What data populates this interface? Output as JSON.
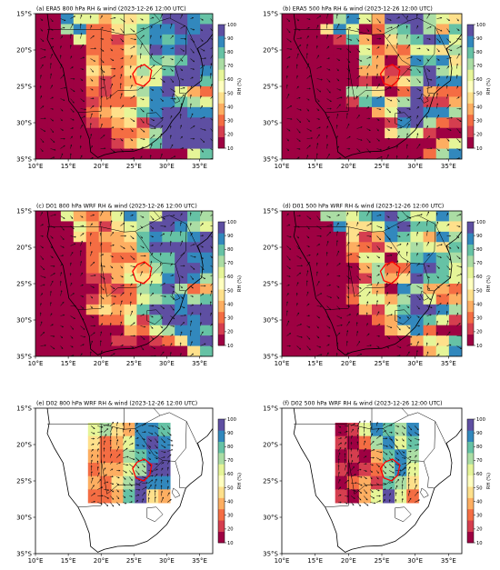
{
  "figure": {
    "colormap": [
      "#9e0142",
      "#d53e4f",
      "#f46d43",
      "#fdae61",
      "#fee08b",
      "#ffffbf",
      "#e6f598",
      "#abdda4",
      "#66c2a5",
      "#3288bd",
      "#5e4fa2"
    ],
    "colorbar_label": "RH (%)",
    "colorbar_ticks": [
      "10",
      "20",
      "30",
      "40",
      "50",
      "60",
      "70",
      "80",
      "90",
      "100"
    ],
    "target_box_color": "#ff0000"
  },
  "chart_data": [
    {
      "type": "heatmap",
      "panel": "a",
      "title": "(a) ERA5 800 hPa RH & wind (2023-12-26 12:00 UTC)",
      "xlabel": "",
      "ylabel": "",
      "xticks": [
        "10°E",
        "15°E",
        "20°E",
        "25°E",
        "30°E",
        "35°E"
      ],
      "yticks": [
        "15°S",
        "20°S",
        "25°S",
        "30°S",
        "35°S"
      ],
      "xlim": [
        10,
        37
      ],
      "ylim": [
        -35,
        -15
      ],
      "colorbar": {
        "label": "RH (%)",
        "range": [
          10,
          100
        ]
      },
      "rh_grid": [
        [
          10,
          10,
          90,
          60,
          60,
          40,
          60,
          50,
          60,
          80,
          100,
          100,
          90,
          80
        ],
        [
          10,
          10,
          70,
          90,
          30,
          30,
          50,
          60,
          80,
          90,
          90,
          100,
          90,
          100
        ],
        [
          10,
          10,
          10,
          60,
          30,
          30,
          20,
          40,
          80,
          90,
          80,
          90,
          100,
          100
        ],
        [
          10,
          10,
          10,
          10,
          30,
          30,
          30,
          50,
          70,
          100,
          90,
          100,
          100,
          100
        ],
        [
          10,
          10,
          10,
          10,
          40,
          30,
          30,
          40,
          60,
          80,
          70,
          80,
          100,
          100
        ],
        [
          10,
          10,
          10,
          10,
          50,
          40,
          30,
          50,
          70,
          60,
          80,
          100,
          100,
          90
        ],
        [
          10,
          10,
          10,
          10,
          40,
          20,
          30,
          40,
          50,
          60,
          100,
          100,
          100,
          80
        ],
        [
          10,
          10,
          10,
          10,
          30,
          20,
          30,
          50,
          70,
          90,
          100,
          60,
          40,
          30
        ],
        [
          10,
          10,
          10,
          10,
          20,
          30,
          30,
          30,
          60,
          90,
          90,
          80,
          70,
          60
        ],
        [
          10,
          10,
          10,
          10,
          30,
          40,
          50,
          60,
          80,
          90,
          100,
          100,
          90,
          90
        ],
        [
          10,
          10,
          10,
          10,
          20,
          30,
          40,
          50,
          20,
          100,
          100,
          100,
          100,
          100
        ],
        [
          10,
          10,
          10,
          10,
          10,
          10,
          30,
          30,
          40,
          70,
          100,
          100,
          100,
          100
        ],
        [
          10,
          10,
          10,
          10,
          10,
          10,
          20,
          40,
          60,
          80,
          100,
          100,
          100,
          100
        ],
        [
          10,
          10,
          10,
          10,
          10,
          10,
          10,
          10,
          10,
          10,
          10,
          10,
          60,
          80
        ]
      ]
    },
    {
      "type": "heatmap",
      "panel": "b",
      "title": "(b) ERA5 500 hPa RH & wind (2023-12-26 12:00 UTC)",
      "xlabel": "",
      "ylabel": "",
      "xticks": [
        "10°E",
        "15°E",
        "20°E",
        "25°E",
        "30°E",
        "35°E"
      ],
      "yticks": [
        "15°S",
        "20°S",
        "25°S",
        "30°S",
        "35°S"
      ],
      "xlim": [
        10,
        37
      ],
      "ylim": [
        -35,
        -15
      ],
      "colorbar": {
        "label": "RH (%)",
        "range": [
          10,
          100
        ]
      },
      "rh_grid": [
        [
          10,
          10,
          10,
          10,
          70,
          90,
          60,
          40,
          100,
          100,
          100,
          70,
          60,
          50
        ],
        [
          10,
          10,
          10,
          50,
          90,
          60,
          10,
          30,
          70,
          80,
          100,
          70,
          40,
          80
        ],
        [
          10,
          10,
          10,
          10,
          20,
          80,
          40,
          10,
          50,
          70,
          80,
          100,
          90,
          60
        ],
        [
          10,
          10,
          10,
          10,
          10,
          10,
          60,
          30,
          40,
          30,
          60,
          60,
          50,
          70
        ],
        [
          10,
          10,
          10,
          10,
          10,
          10,
          70,
          40,
          10,
          40,
          90,
          80,
          90,
          50
        ],
        [
          10,
          10,
          10,
          10,
          10,
          10,
          40,
          40,
          20,
          20,
          80,
          100,
          70,
          60
        ],
        [
          10,
          10,
          10,
          10,
          10,
          10,
          20,
          10,
          30,
          50,
          70,
          100,
          90,
          90
        ],
        [
          10,
          10,
          10,
          10,
          10,
          70,
          70,
          50,
          10,
          30,
          100,
          40,
          30,
          30
        ],
        [
          10,
          10,
          10,
          10,
          10,
          20,
          80,
          90,
          50,
          70,
          100,
          20,
          20,
          40
        ],
        [
          10,
          10,
          10,
          10,
          10,
          10,
          10,
          40,
          60,
          100,
          100,
          90,
          90,
          70
        ],
        [
          10,
          10,
          10,
          10,
          10,
          10,
          10,
          10,
          20,
          90,
          100,
          70,
          30,
          20
        ],
        [
          10,
          10,
          10,
          10,
          10,
          10,
          10,
          10,
          50,
          70,
          60,
          20,
          10,
          10
        ],
        [
          10,
          10,
          10,
          10,
          10,
          10,
          10,
          10,
          10,
          10,
          10,
          10,
          40,
          60
        ],
        [
          10,
          10,
          10,
          10,
          10,
          10,
          10,
          10,
          10,
          10,
          10,
          30,
          70,
          90
        ]
      ]
    },
    {
      "type": "heatmap",
      "panel": "c",
      "title": "(c) D01 800 hPa WRF RH & wind (2023-12-26 12:00 UTC)",
      "xlabel": "",
      "ylabel": "",
      "xticks": [
        "10°E",
        "15°E",
        "20°E",
        "25°E",
        "30°E",
        "35°E"
      ],
      "yticks": [
        "15°S",
        "20°S",
        "25°S",
        "30°S",
        "35°S"
      ],
      "xlim": [
        10,
        37
      ],
      "ylim": [
        -35,
        -15
      ],
      "colorbar": {
        "label": "RH (%)",
        "range": [
          10,
          100
        ]
      },
      "rh_grid": [
        [
          10,
          10,
          60,
          40,
          30,
          40,
          60,
          90,
          70,
          60,
          100,
          100,
          80,
          70
        ],
        [
          10,
          10,
          10,
          60,
          40,
          20,
          50,
          60,
          70,
          100,
          100,
          90,
          70,
          60
        ],
        [
          10,
          10,
          10,
          50,
          30,
          40,
          40,
          50,
          80,
          90,
          80,
          80,
          90,
          100
        ],
        [
          10,
          10,
          10,
          10,
          30,
          30,
          40,
          40,
          80,
          100,
          100,
          100,
          100,
          100
        ],
        [
          10,
          10,
          10,
          10,
          30,
          40,
          30,
          30,
          40,
          80,
          80,
          100,
          90,
          90
        ],
        [
          10,
          10,
          10,
          10,
          30,
          40,
          40,
          50,
          40,
          70,
          80,
          100,
          100,
          90
        ],
        [
          10,
          10,
          10,
          10,
          20,
          20,
          40,
          60,
          50,
          60,
          90,
          100,
          90,
          70
        ],
        [
          10,
          10,
          10,
          10,
          10,
          30,
          20,
          30,
          70,
          80,
          100,
          70,
          30,
          40
        ],
        [
          10,
          10,
          10,
          10,
          20,
          40,
          30,
          30,
          60,
          70,
          80,
          90,
          70,
          80
        ],
        [
          10,
          10,
          10,
          10,
          40,
          50,
          40,
          50,
          80,
          100,
          100,
          90,
          100,
          100
        ],
        [
          10,
          10,
          10,
          10,
          10,
          30,
          30,
          60,
          20,
          80,
          100,
          100,
          90,
          100
        ],
        [
          10,
          10,
          10,
          10,
          10,
          10,
          10,
          40,
          30,
          60,
          70,
          90,
          90,
          80
        ],
        [
          10,
          10,
          10,
          10,
          10,
          10,
          20,
          20,
          10,
          20,
          30,
          50,
          90,
          100
        ],
        [
          10,
          10,
          10,
          10,
          10,
          10,
          10,
          10,
          10,
          10,
          10,
          10,
          50,
          80
        ]
      ]
    },
    {
      "type": "heatmap",
      "panel": "d",
      "title": "(d) D01 500 hPa WRF RH & wind (2023-12-26 12:00 UTC)",
      "xlabel": "",
      "ylabel": "",
      "xticks": [
        "10°E",
        "15°E",
        "20°E",
        "25°E",
        "30°E",
        "35°E"
      ],
      "yticks": [
        "15°S",
        "20°S",
        "25°S",
        "30°S",
        "35°S"
      ],
      "xlim": [
        10,
        37
      ],
      "ylim": [
        -35,
        -15
      ],
      "colorbar": {
        "label": "RH (%)",
        "range": [
          10,
          100
        ]
      },
      "rh_grid": [
        [
          10,
          10,
          10,
          70,
          70,
          60,
          80,
          90,
          100,
          80,
          60,
          60,
          90,
          70
        ],
        [
          10,
          10,
          10,
          10,
          90,
          50,
          50,
          60,
          90,
          100,
          80,
          80,
          60,
          50
        ],
        [
          10,
          10,
          10,
          10,
          10,
          50,
          20,
          40,
          90,
          80,
          60,
          40,
          90,
          70
        ],
        [
          10,
          10,
          10,
          10,
          10,
          40,
          30,
          20,
          50,
          60,
          70,
          60,
          50,
          80
        ],
        [
          10,
          10,
          10,
          10,
          10,
          30,
          60,
          60,
          10,
          60,
          80,
          90,
          80,
          70
        ],
        [
          10,
          10,
          10,
          10,
          10,
          10,
          40,
          70,
          30,
          30,
          90,
          100,
          80,
          60
        ],
        [
          10,
          10,
          10,
          10,
          10,
          10,
          20,
          70,
          40,
          50,
          100,
          80,
          80,
          60
        ],
        [
          10,
          10,
          10,
          10,
          10,
          20,
          60,
          40,
          10,
          90,
          70,
          40,
          40,
          30
        ],
        [
          10,
          10,
          10,
          10,
          10,
          30,
          60,
          60,
          40,
          70,
          100,
          60,
          30,
          40
        ],
        [
          10,
          10,
          10,
          10,
          10,
          10,
          40,
          20,
          60,
          80,
          100,
          100,
          90,
          70
        ],
        [
          10,
          10,
          10,
          10,
          10,
          10,
          10,
          30,
          40,
          90,
          90,
          80,
          60,
          20
        ],
        [
          10,
          10,
          10,
          10,
          10,
          10,
          10,
          10,
          40,
          50,
          90,
          30,
          10,
          10
        ],
        [
          10,
          10,
          10,
          10,
          10,
          10,
          10,
          10,
          10,
          10,
          40,
          60,
          50,
          80
        ],
        [
          10,
          10,
          10,
          10,
          10,
          10,
          10,
          10,
          10,
          10,
          10,
          40,
          60,
          90
        ]
      ]
    },
    {
      "type": "heatmap",
      "panel": "e",
      "title": "(e) D02 800 hPa WRF RH & wind (2023-12-26 12:00 UTC)",
      "xlabel": "",
      "ylabel": "",
      "xticks": [
        "10°E",
        "15°E",
        "20°E",
        "25°E",
        "30°E",
        "35°E"
      ],
      "yticks": [
        "15°S",
        "20°S",
        "25°S",
        "30°S",
        "35°S"
      ],
      "xlim": [
        10,
        37
      ],
      "ylim": [
        -35,
        -15
      ],
      "domain_lon": [
        18,
        30.5
      ],
      "domain_lat": [
        -28,
        -17
      ],
      "colorbar": {
        "label": "RH (%)",
        "range": [
          10,
          100
        ]
      },
      "rh_grid": [
        [
          60,
          70,
          50,
          40,
          90,
          90,
          80
        ],
        [
          50,
          30,
          40,
          60,
          90,
          100,
          90
        ],
        [
          40,
          30,
          30,
          70,
          80,
          90,
          100
        ],
        [
          30,
          40,
          40,
          60,
          70,
          100,
          100
        ],
        [
          40,
          30,
          50,
          70,
          100,
          90,
          90
        ],
        [
          30,
          30,
          40,
          80,
          100,
          50,
          40
        ]
      ]
    },
    {
      "type": "heatmap",
      "panel": "f",
      "title": "(f) D02 500 hPa WRF RH & wind (2023-12-26 12:00 UTC)",
      "xlabel": "",
      "ylabel": "",
      "xticks": [
        "10°E",
        "15°E",
        "20°E",
        "25°E",
        "30°E",
        "35°E"
      ],
      "yticks": [
        "15°S",
        "20°S",
        "25°S",
        "30°S",
        "35°S"
      ],
      "xlim": [
        10,
        37
      ],
      "ylim": [
        -35,
        -15
      ],
      "domain_lon": [
        18,
        30.5
      ],
      "domain_lat": [
        -28,
        -17
      ],
      "colorbar": {
        "label": "RH (%)",
        "range": [
          10,
          100
        ]
      },
      "rh_grid": [
        [
          10,
          20,
          60,
          90,
          80,
          70,
          90
        ],
        [
          20,
          10,
          30,
          70,
          90,
          60,
          80
        ],
        [
          10,
          20,
          10,
          40,
          80,
          90,
          70
        ],
        [
          20,
          10,
          20,
          30,
          70,
          90,
          60
        ],
        [
          10,
          30,
          40,
          20,
          80,
          70,
          50
        ],
        [
          20,
          10,
          40,
          60,
          100,
          60,
          30
        ]
      ]
    }
  ]
}
